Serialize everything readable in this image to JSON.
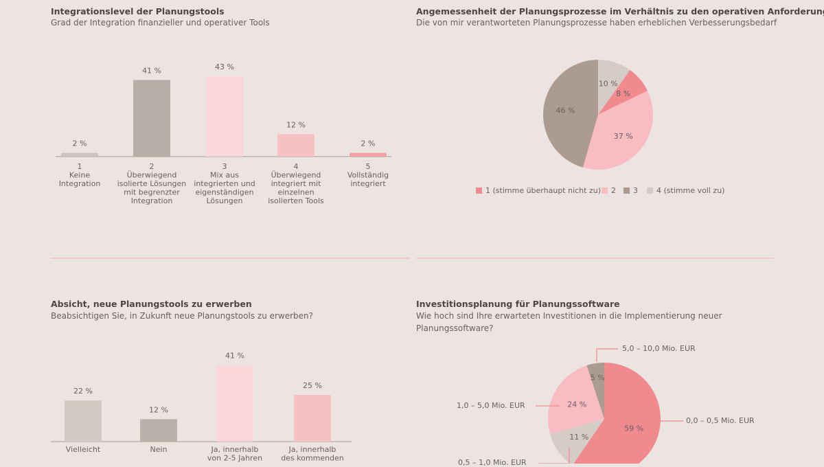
{
  "colors": {
    "background": "#ebe4e1",
    "divider": "#f0bcae",
    "red": "#f08a8f",
    "pink": "#f9bcc2",
    "brown": "#ac9b90",
    "light_gray": "#d6ccc7"
  },
  "chart_data": [
    {
      "type": "bar",
      "title": "Integrationslevel der Planungstools",
      "subtitle": "Grad der Integration finanzieller und operativer Tools",
      "categories": [
        "1",
        "2",
        "3",
        "4",
        "5"
      ],
      "category_descriptions": [
        "Keine Integration",
        "Überwiegend isolierte Lösungen mit begrenzter Integration",
        "Mix aus integrierten und eigenständigen Lösungen",
        "Überwiegend integriert mit einzelnen isolierten Tools",
        "Vollständig integriert"
      ],
      "values": [
        2,
        41,
        43,
        12,
        2
      ],
      "data_labels": [
        "2 %",
        "41 %",
        "43 %",
        "12 %",
        "2 %"
      ],
      "bar_colors": [
        "#cfc5c0",
        "#b8aea7",
        "#fbd7db",
        "#f7c1c4",
        "#f3a3a8"
      ],
      "ylim": [
        0,
        45
      ],
      "grid": false
    },
    {
      "type": "pie",
      "title": "Angemessenheit der Planungsprozesse im Verhältnis zu den operativen Anforderungen",
      "subtitle": "Die von mir verantworteten Planungsprozesse haben erheblichen Verbesserungsbedarf",
      "slices": [
        {
          "label": "4 (stimme voll zu)",
          "value": 10,
          "data_label": "10 %",
          "color": "#d6ccc7"
        },
        {
          "label": "1 (stimme überhaupt nicht zu)",
          "value": 8,
          "data_label": "8 %",
          "color": "#f08a8f"
        },
        {
          "label": "2",
          "value": 37,
          "data_label": "37 %",
          "color": "#f9bcc2"
        },
        {
          "label": "3",
          "value": 46,
          "data_label": "46 %",
          "color": "#ac9b90"
        }
      ],
      "legend": [
        "1 (stimme überhaupt nicht zu)",
        "2",
        "3",
        "4 (stimme voll zu)"
      ],
      "legend_colors": [
        "#f08a8f",
        "#f9bcc2",
        "#ac9b90",
        "#d6ccc7"
      ],
      "legend_placement": "bottom"
    },
    {
      "type": "bar",
      "title": "Absicht, neue Planungstools zu erwerben",
      "subtitle": "Beabsichtigen Sie, in Zukunft neue Planungstools zu erwerben?",
      "categories": [
        "Vielleicht",
        "Nein",
        "Ja, innerhalb von 2-5 Jahren",
        "Ja, innerhalb des kommenden"
      ],
      "values": [
        22,
        12,
        41,
        25
      ],
      "data_labels": [
        "22 %",
        "12 %",
        "41 %",
        "25 %"
      ],
      "bar_colors": [
        "#d3c9c5",
        "#bbb1ab",
        "#fbd7db",
        "#f7c1c4"
      ],
      "ylim": [
        0,
        45
      ],
      "grid": false
    },
    {
      "type": "pie",
      "title": "Investitionsplanung für Planungssoftware",
      "subtitle": "Wie hoch sind Ihre erwarteten Investitionen in die Implementierung neuer Planungssoftware?",
      "slices": [
        {
          "label": "0,0 – 0,5 Mio. EUR",
          "value": 59,
          "data_label": "59 %",
          "color": "#f08a8f"
        },
        {
          "label": "0,5 – 1,0 Mio. EUR",
          "value": 11,
          "data_label": "11 %",
          "color": "#d6ccc7"
        },
        {
          "label": "1,0 – 5,0 Mio. EUR",
          "value": 24,
          "data_label": "24 %",
          "color": "#f9bcc2"
        },
        {
          "label": "5,0 – 10,0 Mio. EUR",
          "value": 5,
          "data_label": "5 %",
          "color": "#ac9b90"
        }
      ],
      "legend_placement": "callouts"
    }
  ]
}
